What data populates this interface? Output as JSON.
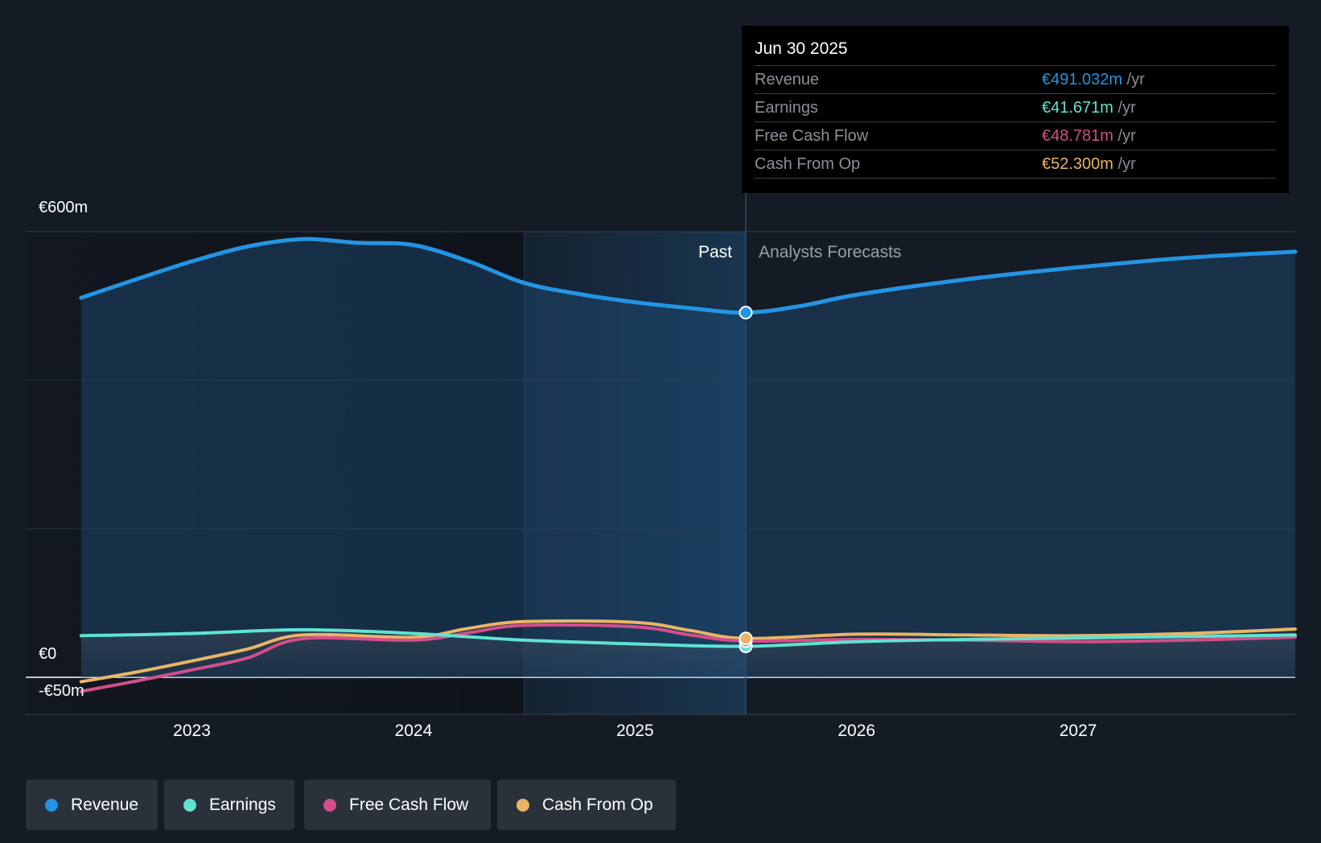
{
  "chart_data": {
    "type": "area",
    "y_axis": {
      "labels": [
        "€600m",
        "€0",
        "-€50m"
      ],
      "ylim": [
        -50,
        600
      ]
    },
    "x_axis": {
      "ticks": [
        "2023",
        "2024",
        "2025",
        "2026",
        "2027"
      ],
      "tick_values": [
        2023,
        2024,
        2025,
        2026,
        2027
      ],
      "xlim": [
        2022.25,
        2027.98
      ]
    },
    "regions": {
      "past_label": "Past",
      "forecast_label": "Analysts Forecasts",
      "divider_x": 2025.5,
      "highlight_start_x": 2024.5
    },
    "series": [
      {
        "name": "Revenue",
        "color": "#2394e3",
        "points": [
          [
            2022.5,
            511
          ],
          [
            2022.75,
            536
          ],
          [
            2023.0,
            560
          ],
          [
            2023.25,
            580
          ],
          [
            2023.5,
            590
          ],
          [
            2023.75,
            585
          ],
          [
            2024.0,
            582
          ],
          [
            2024.25,
            560
          ],
          [
            2024.5,
            531
          ],
          [
            2024.75,
            516
          ],
          [
            2025.0,
            505
          ],
          [
            2025.25,
            497
          ],
          [
            2025.5,
            491
          ],
          [
            2025.75,
            500
          ],
          [
            2026.0,
            515
          ],
          [
            2026.5,
            536
          ],
          [
            2027.0,
            552
          ],
          [
            2027.5,
            565
          ],
          [
            2027.98,
            573
          ]
        ]
      },
      {
        "name": "Earnings",
        "color": "#5fe3d1",
        "points": [
          [
            2022.5,
            56
          ],
          [
            2023.0,
            59
          ],
          [
            2023.5,
            64
          ],
          [
            2024.0,
            59
          ],
          [
            2024.5,
            50
          ],
          [
            2025.0,
            45
          ],
          [
            2025.5,
            41.7
          ],
          [
            2026.0,
            48
          ],
          [
            2026.5,
            51
          ],
          [
            2027.0,
            53
          ],
          [
            2027.5,
            55
          ],
          [
            2027.98,
            57
          ]
        ]
      },
      {
        "name": "Free Cash Flow",
        "color": "#d44e8b",
        "points": [
          [
            2022.5,
            -19
          ],
          [
            2022.75,
            -5
          ],
          [
            2023.0,
            10
          ],
          [
            2023.25,
            26
          ],
          [
            2023.5,
            52
          ],
          [
            2024.0,
            50
          ],
          [
            2024.25,
            60
          ],
          [
            2024.5,
            70
          ],
          [
            2025.0,
            68
          ],
          [
            2025.25,
            57
          ],
          [
            2025.5,
            48.8
          ],
          [
            2026.0,
            51
          ],
          [
            2026.5,
            50
          ],
          [
            2027.0,
            48
          ],
          [
            2027.5,
            50
          ],
          [
            2027.98,
            54
          ]
        ]
      },
      {
        "name": "Cash From Op",
        "color": "#e8b566",
        "points": [
          [
            2022.5,
            -6
          ],
          [
            2022.75,
            7
          ],
          [
            2023.0,
            22
          ],
          [
            2023.25,
            38
          ],
          [
            2023.5,
            57
          ],
          [
            2024.0,
            54
          ],
          [
            2024.25,
            66
          ],
          [
            2024.5,
            75
          ],
          [
            2025.0,
            74
          ],
          [
            2025.25,
            63
          ],
          [
            2025.5,
            52.3
          ],
          [
            2026.0,
            58
          ],
          [
            2026.5,
            57
          ],
          [
            2027.0,
            56
          ],
          [
            2027.5,
            59
          ],
          [
            2027.98,
            65
          ]
        ]
      }
    ]
  },
  "tooltip": {
    "date": "Jun 30 2025",
    "rows": [
      {
        "label": "Revenue",
        "value": "€491.032m",
        "unit": "/yr",
        "color": "#2394e3"
      },
      {
        "label": "Earnings",
        "value": "€41.671m",
        "unit": "/yr",
        "color": "#5fe3d1"
      },
      {
        "label": "Free Cash Flow",
        "value": "€48.781m",
        "unit": "/yr",
        "color": "#d44e8b"
      },
      {
        "label": "Cash From Op",
        "value": "€52.300m",
        "unit": "/yr",
        "color": "#e8b566"
      }
    ]
  },
  "legend": [
    {
      "label": "Revenue",
      "color": "#2394e3"
    },
    {
      "label": "Earnings",
      "color": "#5fe3d1"
    },
    {
      "label": "Free Cash Flow",
      "color": "#d44e8b"
    },
    {
      "label": "Cash From Op",
      "color": "#e8b566"
    }
  ]
}
